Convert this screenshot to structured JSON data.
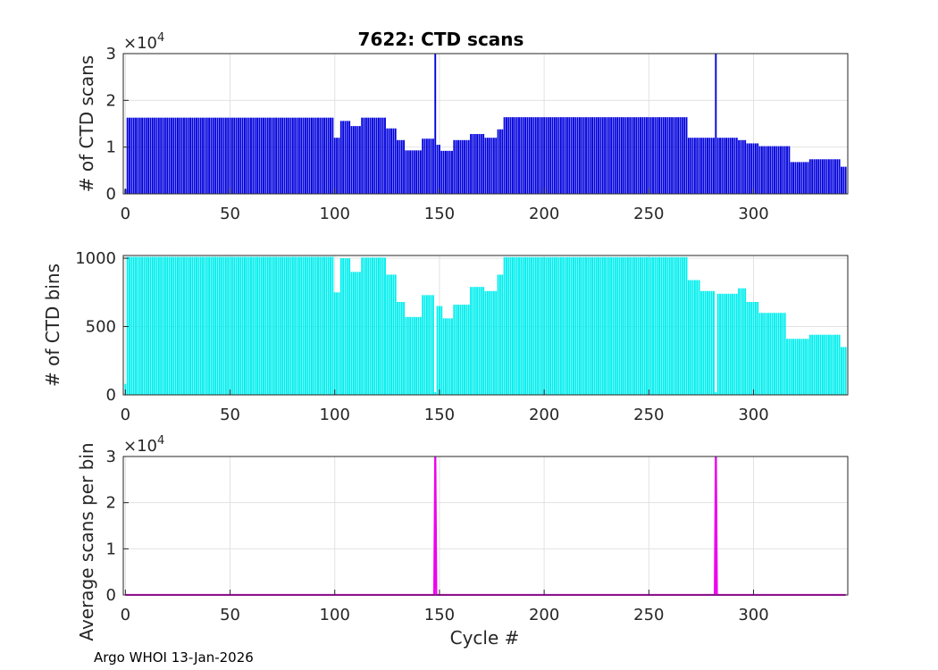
{
  "footer": "Argo WHOI 13-Jan-2026",
  "colors": {
    "scans": "#0000dd",
    "bins": "#00eeee",
    "ratio": "#ee00ee",
    "grid": "#e2e2e2",
    "axis": "#262626"
  },
  "chart_data": [
    {
      "type": "bar",
      "title": "7622: CTD scans",
      "xlabel": "",
      "ylabel": "# of CTD scans",
      "xlim": [
        -1,
        345
      ],
      "ylim": [
        0,
        30000
      ],
      "xticks": [
        "0",
        "50",
        "100",
        "150",
        "200",
        "250",
        "300"
      ],
      "yticks": [
        "0",
        "1",
        "2",
        "3"
      ],
      "exponent_base": "×10",
      "exponent_power": "4",
      "segments": [
        {
          "from": 0,
          "to": 2,
          "value": 1000
        },
        {
          "from": 1,
          "to": 100,
          "value": 16300
        },
        {
          "from": 100,
          "to": 103,
          "value": 12000
        },
        {
          "from": 103,
          "to": 108,
          "value": 15600
        },
        {
          "from": 108,
          "to": 113,
          "value": 14500
        },
        {
          "from": 113,
          "to": 125,
          "value": 16300
        },
        {
          "from": 125,
          "to": 130,
          "value": 14000
        },
        {
          "from": 130,
          "to": 134,
          "value": 11500
        },
        {
          "from": 134,
          "to": 142,
          "value": 9300
        },
        {
          "from": 142,
          "to": 148,
          "value": 11800
        },
        {
          "from": 148,
          "to": 149,
          "value": 30000
        },
        {
          "from": 149,
          "to": 151,
          "value": 10500
        },
        {
          "from": 151,
          "to": 157,
          "value": 9200
        },
        {
          "from": 157,
          "to": 165,
          "value": 11500
        },
        {
          "from": 165,
          "to": 172,
          "value": 12800
        },
        {
          "from": 172,
          "to": 178,
          "value": 12000
        },
        {
          "from": 178,
          "to": 181,
          "value": 13800
        },
        {
          "from": 181,
          "to": 269,
          "value": 16400
        },
        {
          "from": 269,
          "to": 282,
          "value": 12000
        },
        {
          "from": 282,
          "to": 283,
          "value": 30000
        },
        {
          "from": 283,
          "to": 293,
          "value": 12000
        },
        {
          "from": 293,
          "to": 297,
          "value": 11500
        },
        {
          "from": 297,
          "to": 303,
          "value": 10800
        },
        {
          "from": 303,
          "to": 318,
          "value": 10200
        },
        {
          "from": 318,
          "to": 327,
          "value": 6800
        },
        {
          "from": 327,
          "to": 342,
          "value": 7400
        },
        {
          "from": 342,
          "to": 345,
          "value": 5800
        }
      ]
    },
    {
      "type": "bar",
      "title": "",
      "xlabel": "",
      "ylabel": "# of CTD bins",
      "xlim": [
        -1,
        345
      ],
      "ylim": [
        0,
        1020
      ],
      "xticks": [
        "0",
        "50",
        "100",
        "150",
        "200",
        "250",
        "300"
      ],
      "yticks": [
        "0",
        "500",
        "1000"
      ],
      "segments": [
        {
          "from": 0,
          "to": 1,
          "value": 80
        },
        {
          "from": 1,
          "to": 100,
          "value": 1010
        },
        {
          "from": 100,
          "to": 103,
          "value": 750
        },
        {
          "from": 103,
          "to": 108,
          "value": 1000
        },
        {
          "from": 108,
          "to": 113,
          "value": 900
        },
        {
          "from": 113,
          "to": 125,
          "value": 1005
        },
        {
          "from": 125,
          "to": 130,
          "value": 880
        },
        {
          "from": 130,
          "to": 134,
          "value": 680
        },
        {
          "from": 134,
          "to": 142,
          "value": 570
        },
        {
          "from": 142,
          "to": 148,
          "value": 730
        },
        {
          "from": 148,
          "to": 149,
          "value": 20
        },
        {
          "from": 149,
          "to": 152,
          "value": 650
        },
        {
          "from": 152,
          "to": 157,
          "value": 560
        },
        {
          "from": 157,
          "to": 165,
          "value": 660
        },
        {
          "from": 165,
          "to": 172,
          "value": 790
        },
        {
          "from": 172,
          "to": 178,
          "value": 760
        },
        {
          "from": 178,
          "to": 181,
          "value": 880
        },
        {
          "from": 181,
          "to": 269,
          "value": 1008
        },
        {
          "from": 269,
          "to": 275,
          "value": 840
        },
        {
          "from": 275,
          "to": 282,
          "value": 760
        },
        {
          "from": 282,
          "to": 283,
          "value": 20
        },
        {
          "from": 283,
          "to": 293,
          "value": 740
        },
        {
          "from": 293,
          "to": 297,
          "value": 780
        },
        {
          "from": 297,
          "to": 303,
          "value": 680
        },
        {
          "from": 303,
          "to": 316,
          "value": 600
        },
        {
          "from": 316,
          "to": 327,
          "value": 410
        },
        {
          "from": 327,
          "to": 342,
          "value": 440
        },
        {
          "from": 342,
          "to": 345,
          "value": 350
        }
      ]
    },
    {
      "type": "line",
      "title": "",
      "xlabel": "Cycle #",
      "ylabel": "Average scans per bin",
      "xlim": [
        -1,
        345
      ],
      "ylim": [
        0,
        30000
      ],
      "xticks": [
        "0",
        "50",
        "100",
        "150",
        "200",
        "250",
        "300"
      ],
      "yticks": [
        "0",
        "1",
        "2",
        "3"
      ],
      "exponent_base": "×10",
      "exponent_power": "4",
      "spikes": [
        148,
        282
      ],
      "baseline_value": 16
    }
  ]
}
